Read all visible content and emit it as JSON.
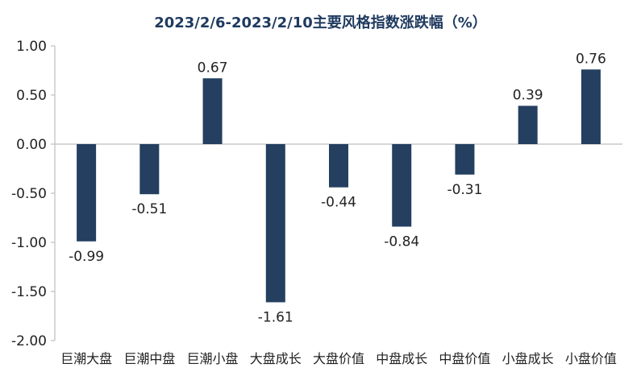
{
  "chart_data": {
    "type": "bar",
    "title": "2023/2/6-2023/2/10主要风格指数涨跌幅（%）",
    "categories": [
      "巨潮大盘",
      "巨潮中盘",
      "巨潮小盘",
      "大盘成长",
      "大盘价值",
      "中盘成长",
      "中盘价值",
      "小盘成长",
      "小盘价值"
    ],
    "values": [
      -0.99,
      -0.51,
      0.67,
      -1.61,
      -0.44,
      -0.84,
      -0.31,
      0.39,
      0.76
    ],
    "value_labels": [
      "-0.99",
      "-0.51",
      "0.67",
      "-1.61",
      "-0.44",
      "-0.84",
      "-0.31",
      "0.39",
      "0.76"
    ],
    "ylim": [
      -2.0,
      1.0
    ],
    "yticks": [
      1.0,
      0.5,
      0.0,
      -0.5,
      -1.0,
      -1.5,
      -2.0
    ],
    "ytick_labels": [
      "1.00",
      "0.50",
      "0.00",
      "-0.50",
      "-1.00",
      "-1.50",
      "-2.00"
    ],
    "xlabel": "",
    "ylabel": "",
    "grid": false,
    "legend": "none",
    "bar_color": "#243f60",
    "axis_color": "#bfbfbf"
  }
}
